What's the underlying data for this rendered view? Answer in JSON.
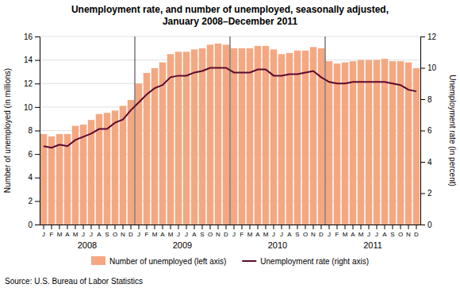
{
  "chart_data": {
    "type": "bar",
    "title": "Unemployment rate, and number of unemployed, seasonally adjusted,\nJanuary 2008–December 2011",
    "annotations": [
      "Source: U.S. Bureau of Labor Statistics"
    ],
    "ylabel": "Number of unemployed (in millions)",
    "y2label": "Unemployment rate (in percent)",
    "categories": [
      "J",
      "F",
      "M",
      "A",
      "M",
      "J",
      "J",
      "A",
      "S",
      "O",
      "N",
      "D",
      "J",
      "F",
      "M",
      "A",
      "M",
      "J",
      "J",
      "A",
      "S",
      "O",
      "N",
      "D",
      "J",
      "F",
      "M",
      "A",
      "M",
      "J",
      "J",
      "A",
      "S",
      "O",
      "N",
      "D",
      "J",
      "F",
      "M",
      "A",
      "M",
      "J",
      "J",
      "A",
      "S",
      "O",
      "N",
      "D"
    ],
    "groups": [
      "2008",
      "2009",
      "2010",
      "2011"
    ],
    "series": [
      {
        "name": "Number of unemployed (left axis)",
        "type": "bar",
        "color": "#F4A882",
        "values": [
          7.7,
          7.5,
          7.7,
          7.7,
          8.4,
          8.5,
          8.9,
          9.4,
          9.5,
          9.7,
          10.1,
          10.6,
          12.0,
          12.9,
          13.3,
          13.8,
          14.5,
          14.7,
          14.7,
          14.9,
          15.0,
          15.3,
          15.4,
          15.3,
          15.0,
          15.0,
          15.0,
          15.2,
          15.2,
          14.9,
          14.5,
          14.6,
          14.8,
          14.8,
          15.1,
          15.0,
          13.9,
          13.7,
          13.8,
          13.9,
          14.0,
          14.0,
          14.0,
          14.1,
          13.9,
          13.9,
          13.8,
          13.3
        ]
      },
      {
        "name": "Unemployment rate (right axis)",
        "type": "line",
        "color": "#5C0A2E",
        "axis": "y2",
        "values": [
          5.0,
          4.9,
          5.1,
          5.0,
          5.4,
          5.6,
          5.8,
          6.1,
          6.1,
          6.5,
          6.7,
          7.3,
          7.8,
          8.3,
          8.7,
          8.9,
          9.4,
          9.5,
          9.5,
          9.7,
          9.8,
          10.0,
          10.0,
          10.0,
          9.7,
          9.7,
          9.7,
          9.9,
          9.9,
          9.5,
          9.5,
          9.6,
          9.6,
          9.7,
          9.8,
          9.4,
          9.1,
          9.0,
          9.0,
          9.1,
          9.1,
          9.1,
          9.1,
          9.1,
          9.0,
          8.9,
          8.6,
          8.5
        ]
      }
    ],
    "ylim": [
      0,
      16
    ],
    "yticks": [
      0,
      2,
      4,
      6,
      8,
      10,
      12,
      14,
      16
    ],
    "y2lim": [
      0,
      12
    ],
    "y2ticks": [
      0,
      2,
      4,
      6,
      8,
      10,
      12
    ],
    "grid": true,
    "legend": "bottom"
  }
}
